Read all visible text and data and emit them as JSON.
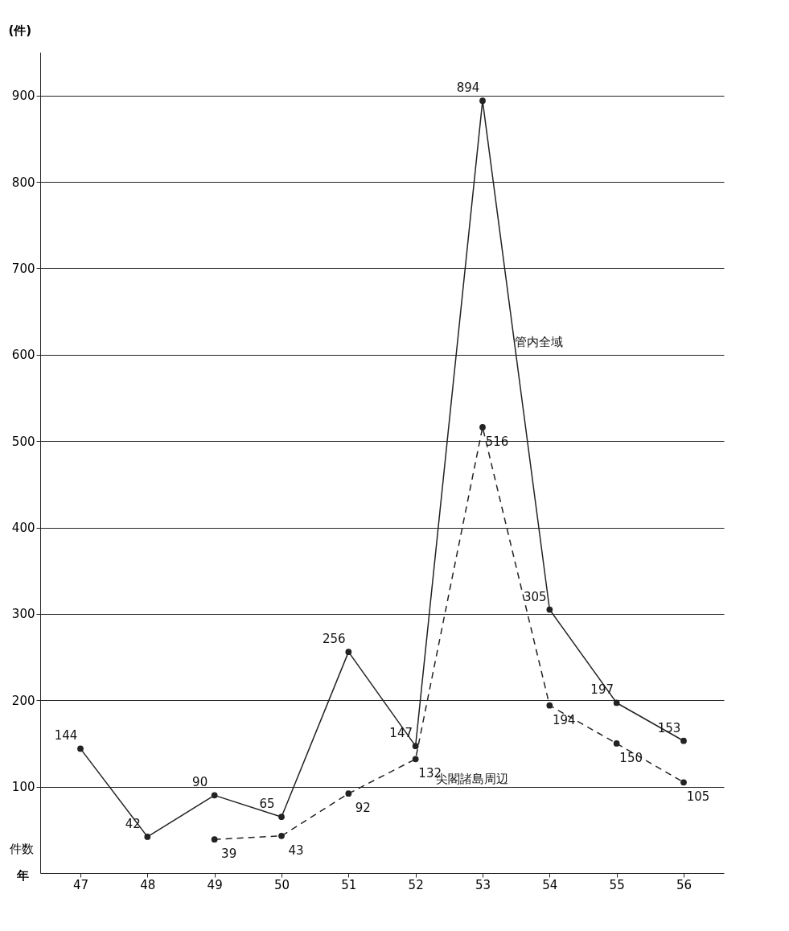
{
  "chart_data": {
    "type": "line",
    "ylabel": "(件)",
    "xlabel": "年",
    "annotations": [
      "件数"
    ],
    "categories": [
      "47",
      "48",
      "49",
      "50",
      "51",
      "52",
      "53",
      "54",
      "55",
      "56"
    ],
    "series": [
      {
        "name": "管内全域",
        "color": "#222222",
        "line_style": "solid",
        "values": [
          144,
          42,
          90,
          65,
          256,
          147,
          894,
          305,
          197,
          153
        ]
      },
      {
        "name": "尖閣諸島周辺",
        "color": "#222222",
        "line_style": "dashed",
        "values": [
          null,
          null,
          39,
          43,
          92,
          132,
          516,
          194,
          150,
          105
        ]
      }
    ],
    "ylim": [
      0,
      950
    ],
    "yticks": [
      100,
      200,
      300,
      400,
      500,
      600,
      700,
      800,
      900
    ],
    "grid": "y",
    "marker": "circle",
    "data_labels": true,
    "legend": false
  }
}
